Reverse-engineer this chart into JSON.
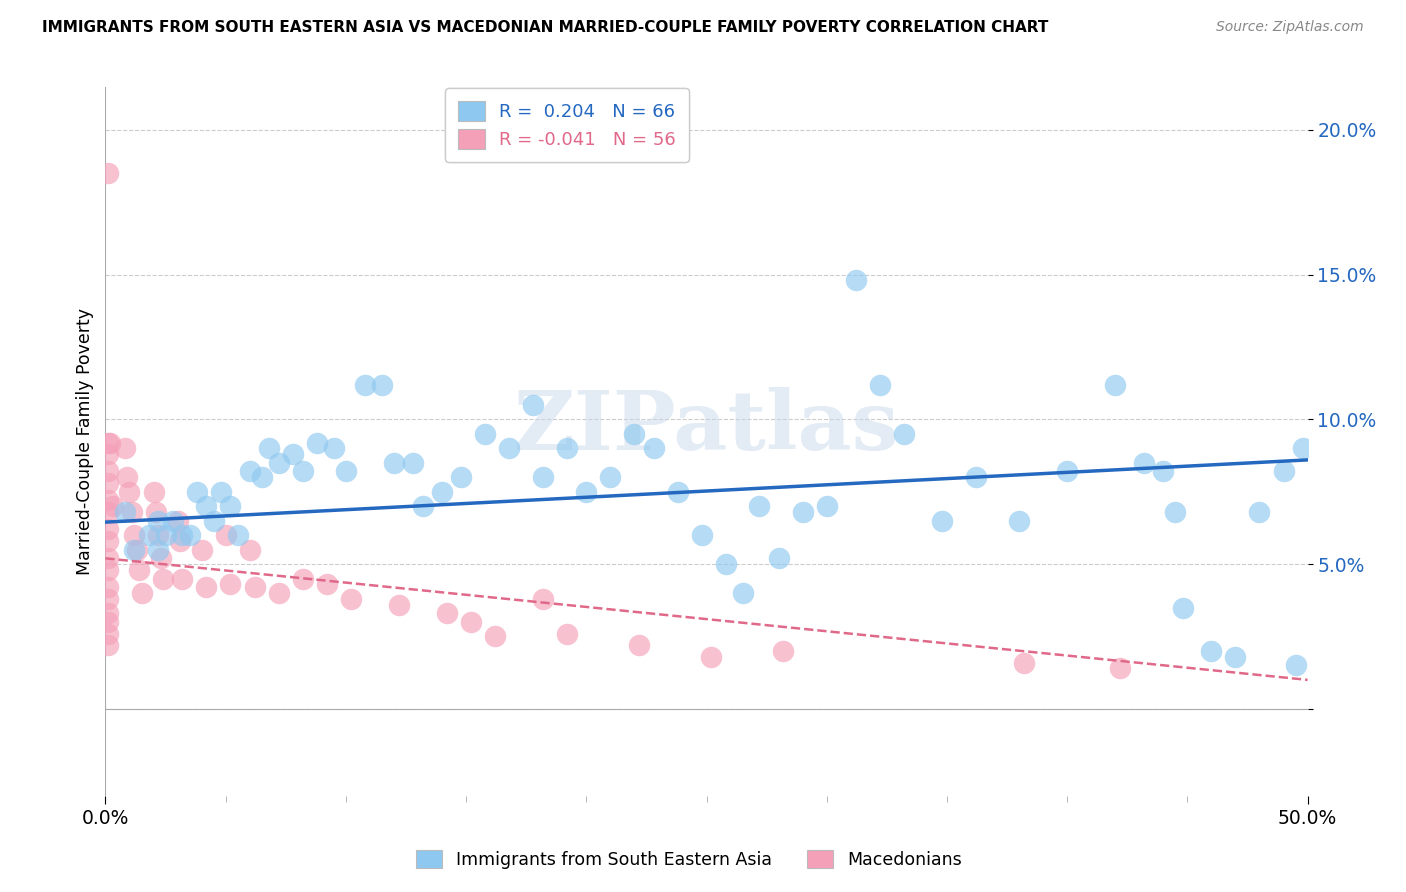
{
  "title": "IMMIGRANTS FROM SOUTH EASTERN ASIA VS MACEDONIAN MARRIED-COUPLE FAMILY POVERTY CORRELATION CHART",
  "source": "Source: ZipAtlas.com",
  "ylabel": "Married-Couple Family Poverty",
  "y_ticks": [
    0.0,
    0.05,
    0.1,
    0.15,
    0.2
  ],
  "y_tick_labels": [
    "",
    "5.0%",
    "10.0%",
    "15.0%",
    "20.0%"
  ],
  "x_range": [
    0.0,
    0.5
  ],
  "y_range": [
    -0.03,
    0.215
  ],
  "color_blue": "#8EC8F0",
  "color_pink": "#F4A0B8",
  "line_color_blue": "#2468C0",
  "line_color_pink": "#E06888",
  "watermark": "ZIPatlas",
  "blue_scatter_x": [
    0.008,
    0.012,
    0.018,
    0.022,
    0.022,
    0.025,
    0.028,
    0.032,
    0.035,
    0.038,
    0.042,
    0.045,
    0.048,
    0.052,
    0.055,
    0.06,
    0.065,
    0.068,
    0.072,
    0.078,
    0.082,
    0.088,
    0.095,
    0.1,
    0.108,
    0.115,
    0.12,
    0.128,
    0.132,
    0.14,
    0.148,
    0.158,
    0.168,
    0.178,
    0.182,
    0.192,
    0.2,
    0.21,
    0.22,
    0.228,
    0.238,
    0.248,
    0.258,
    0.265,
    0.272,
    0.28,
    0.29,
    0.3,
    0.312,
    0.322,
    0.332,
    0.348,
    0.362,
    0.38,
    0.4,
    0.42,
    0.432,
    0.44,
    0.445,
    0.448,
    0.46,
    0.47,
    0.48,
    0.49,
    0.495,
    0.498
  ],
  "blue_scatter_y": [
    0.068,
    0.055,
    0.06,
    0.055,
    0.065,
    0.06,
    0.065,
    0.06,
    0.06,
    0.075,
    0.07,
    0.065,
    0.075,
    0.07,
    0.06,
    0.082,
    0.08,
    0.09,
    0.085,
    0.088,
    0.082,
    0.092,
    0.09,
    0.082,
    0.112,
    0.112,
    0.085,
    0.085,
    0.07,
    0.075,
    0.08,
    0.095,
    0.09,
    0.105,
    0.08,
    0.09,
    0.075,
    0.08,
    0.095,
    0.09,
    0.075,
    0.06,
    0.05,
    0.04,
    0.07,
    0.052,
    0.068,
    0.07,
    0.148,
    0.112,
    0.095,
    0.065,
    0.08,
    0.065,
    0.082,
    0.112,
    0.085,
    0.082,
    0.068,
    0.035,
    0.02,
    0.018,
    0.068,
    0.082,
    0.015,
    0.09
  ],
  "pink_scatter_x": [
    0.001,
    0.001,
    0.001,
    0.001,
    0.001,
    0.001,
    0.001,
    0.001,
    0.001,
    0.001,
    0.001,
    0.001,
    0.001,
    0.001,
    0.001,
    0.001,
    0.001,
    0.002,
    0.003,
    0.008,
    0.009,
    0.01,
    0.011,
    0.012,
    0.013,
    0.014,
    0.015,
    0.02,
    0.021,
    0.022,
    0.023,
    0.024,
    0.03,
    0.031,
    0.032,
    0.04,
    0.042,
    0.05,
    0.052,
    0.06,
    0.062,
    0.072,
    0.082,
    0.092,
    0.102,
    0.122,
    0.142,
    0.152,
    0.162,
    0.182,
    0.192,
    0.222,
    0.252,
    0.282,
    0.382,
    0.422
  ],
  "pink_scatter_y": [
    0.185,
    0.092,
    0.088,
    0.082,
    0.078,
    0.072,
    0.068,
    0.062,
    0.058,
    0.052,
    0.048,
    0.042,
    0.038,
    0.033,
    0.03,
    0.026,
    0.022,
    0.092,
    0.07,
    0.09,
    0.08,
    0.075,
    0.068,
    0.06,
    0.055,
    0.048,
    0.04,
    0.075,
    0.068,
    0.06,
    0.052,
    0.045,
    0.065,
    0.058,
    0.045,
    0.055,
    0.042,
    0.06,
    0.043,
    0.055,
    0.042,
    0.04,
    0.045,
    0.043,
    0.038,
    0.036,
    0.033,
    0.03,
    0.025,
    0.038,
    0.026,
    0.022,
    0.018,
    0.02,
    0.016,
    0.014
  ],
  "blue_line_x": [
    0.0,
    0.5
  ],
  "blue_line_y": [
    0.0645,
    0.086
  ],
  "pink_line_x": [
    0.0,
    0.5
  ],
  "pink_line_y": [
    0.052,
    0.01
  ]
}
